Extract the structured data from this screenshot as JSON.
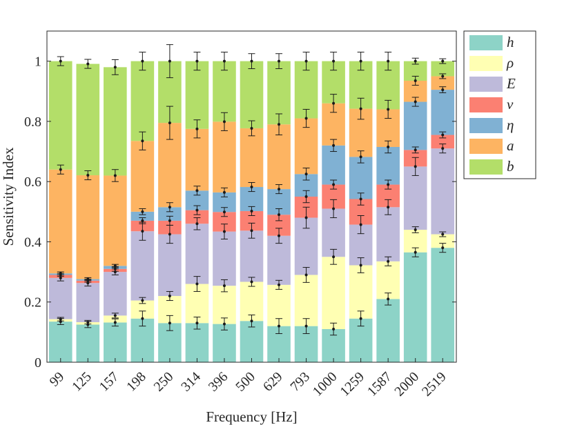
{
  "chart_data": {
    "type": "bar",
    "stacked": true,
    "title": "",
    "xlabel": "Frequency [Hz]",
    "ylabel": "Sensitivity Index",
    "ylim": [
      0,
      1.1
    ],
    "yticks": [
      0,
      0.2,
      0.4,
      0.6,
      0.8,
      1
    ],
    "ytick_labels": [
      "0",
      "0.2",
      "0.4",
      "0.6",
      "0.8",
      "1"
    ],
    "grid": false,
    "legend_position": "outside-right",
    "categories": [
      "99",
      "125",
      "157",
      "198",
      "250",
      "314",
      "396",
      "500",
      "629",
      "793",
      "1000",
      "1259",
      "1587",
      "2000",
      "2519"
    ],
    "series": [
      {
        "name": "h",
        "color": "#8dd3c7",
        "values": [
          0.135,
          0.125,
          0.132,
          0.145,
          0.13,
          0.13,
          0.127,
          0.137,
          0.12,
          0.12,
          0.11,
          0.145,
          0.21,
          0.365,
          0.38
        ],
        "errors": [
          0.01,
          0.01,
          0.012,
          0.025,
          0.025,
          0.02,
          0.02,
          0.02,
          0.025,
          0.025,
          0.02,
          0.025,
          0.02,
          0.015,
          0.015
        ]
      },
      {
        "name": "ρ",
        "color": "#ffffb3",
        "values": [
          0.008,
          0.008,
          0.023,
          0.06,
          0.09,
          0.13,
          0.127,
          0.13,
          0.137,
          0.17,
          0.24,
          0.177,
          0.125,
          0.075,
          0.045
        ],
        "errors": [
          0.006,
          0.006,
          0.008,
          0.01,
          0.015,
          0.025,
          0.02,
          0.015,
          0.015,
          0.025,
          0.025,
          0.025,
          0.015,
          0.01,
          0.008
        ]
      },
      {
        "name": "E",
        "color": "#bebada",
        "values": [
          0.137,
          0.13,
          0.145,
          0.23,
          0.205,
          0.2,
          0.18,
          0.17,
          0.163,
          0.19,
          0.16,
          0.135,
          0.18,
          0.21,
          0.285
        ],
        "errors": [
          0.01,
          0.01,
          0.01,
          0.03,
          0.03,
          0.02,
          0.025,
          0.025,
          0.025,
          0.035,
          0.03,
          0.03,
          0.025,
          0.03,
          0.015
        ]
      },
      {
        "name": "ν",
        "color": "#fb8072",
        "values": [
          0.01,
          0.008,
          0.01,
          0.035,
          0.045,
          0.045,
          0.065,
          0.065,
          0.07,
          0.07,
          0.08,
          0.085,
          0.075,
          0.055,
          0.045
        ],
        "errors": [
          0.005,
          0.005,
          0.008,
          0.01,
          0.015,
          0.015,
          0.015,
          0.015,
          0.02,
          0.02,
          0.015,
          0.02,
          0.015,
          0.01,
          0.01
        ]
      },
      {
        "name": "η",
        "color": "#80b1d3",
        "values": [
          0.005,
          0.005,
          0.01,
          0.03,
          0.045,
          0.065,
          0.065,
          0.08,
          0.085,
          0.075,
          0.13,
          0.14,
          0.125,
          0.16,
          0.15
        ],
        "errors": [
          0.005,
          0.005,
          0.005,
          0.01,
          0.015,
          0.015,
          0.015,
          0.015,
          0.015,
          0.02,
          0.02,
          0.02,
          0.02,
          0.015,
          0.01
        ]
      },
      {
        "name": "a",
        "color": "#fdb462",
        "values": [
          0.345,
          0.345,
          0.3,
          0.235,
          0.28,
          0.205,
          0.235,
          0.195,
          0.215,
          0.185,
          0.14,
          0.16,
          0.125,
          0.07,
          0.045
        ],
        "errors": [
          0.015,
          0.015,
          0.02,
          0.03,
          0.055,
          0.03,
          0.03,
          0.025,
          0.035,
          0.03,
          0.03,
          0.035,
          0.03,
          0.015,
          0.008
        ]
      },
      {
        "name": "b",
        "color": "#b3de69",
        "values": [
          0.36,
          0.37,
          0.36,
          0.265,
          0.205,
          0.225,
          0.201,
          0.223,
          0.21,
          0.19,
          0.14,
          0.158,
          0.16,
          0.065,
          0.05
        ],
        "errors": [
          0.015,
          0.015,
          0.025,
          0.03,
          0.055,
          0.03,
          0.03,
          0.025,
          0.025,
          0.03,
          0.03,
          0.03,
          0.03,
          0.01,
          0.008
        ]
      }
    ]
  }
}
